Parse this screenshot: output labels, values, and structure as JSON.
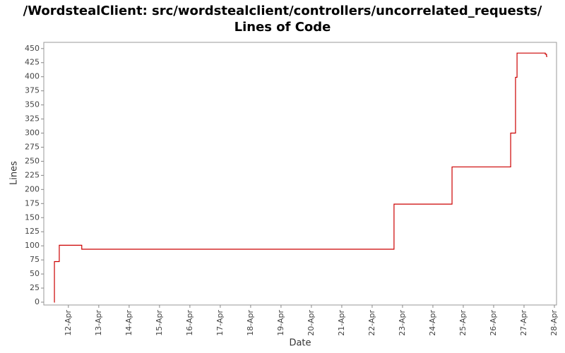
{
  "chart_data": {
    "type": "step",
    "title": "/WordstealClient: src/wordstealclient/controllers/uncorrelated_requests/",
    "subtitle": "Lines of Code",
    "x_label": "Date",
    "y_label": "Lines",
    "x": [
      11.53,
      11.54,
      11.7,
      12.44,
      22.72,
      24.63,
      26.56,
      26.72,
      26.77,
      27.7,
      27.74,
      27.77
    ],
    "values": [
      0,
      72,
      101,
      94,
      174,
      240,
      300,
      399,
      442,
      440,
      436,
      436
    ],
    "color": "#cc0000",
    "xlim": [
      11.19,
      28.07
    ],
    "xticks": [
      {
        "value": 12,
        "label": "12-Apr"
      },
      {
        "value": 13,
        "label": "13-Apr"
      },
      {
        "value": 14,
        "label": "14-Apr"
      },
      {
        "value": 15,
        "label": "15-Apr"
      },
      {
        "value": 16,
        "label": "16-Apr"
      },
      {
        "value": 17,
        "label": "17-Apr"
      },
      {
        "value": 18,
        "label": "18-Apr"
      },
      {
        "value": 19,
        "label": "19-Apr"
      },
      {
        "value": 20,
        "label": "20-Apr"
      },
      {
        "value": 21,
        "label": "21-Apr"
      },
      {
        "value": 22,
        "label": "22-Apr"
      },
      {
        "value": 23,
        "label": "23-Apr"
      },
      {
        "value": 24,
        "label": "24-Apr"
      },
      {
        "value": 25,
        "label": "25-Apr"
      },
      {
        "value": 26,
        "label": "26-Apr"
      },
      {
        "value": 27,
        "label": "27-Apr"
      },
      {
        "value": 28,
        "label": "28-Apr"
      }
    ],
    "ylim": [
      -5,
      461
    ],
    "yticks": [
      0,
      25,
      50,
      75,
      100,
      125,
      150,
      175,
      200,
      225,
      250,
      275,
      300,
      325,
      350,
      375,
      400,
      425,
      450
    ]
  }
}
